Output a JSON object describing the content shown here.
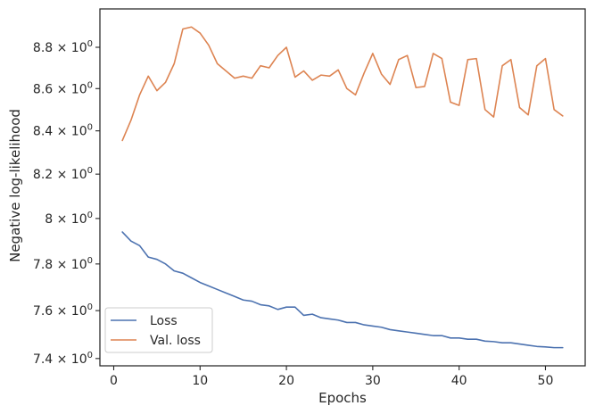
{
  "chart_data": {
    "type": "line",
    "xlabel": "Epochs",
    "ylabel": "Negative log-likelihood",
    "y_scale": "log",
    "xlim": [
      -1.6,
      54.6
    ],
    "ylim": [
      7.37,
      8.99
    ],
    "x_ticks": [
      0,
      10,
      20,
      30,
      40,
      50
    ],
    "y_ticks": [
      {
        "value": 7.4,
        "mantissa": "7.4"
      },
      {
        "value": 7.6,
        "mantissa": "7.6"
      },
      {
        "value": 7.8,
        "mantissa": "7.8"
      },
      {
        "value": 8.0,
        "mantissa": "8"
      },
      {
        "value": 8.2,
        "mantissa": "8.2"
      },
      {
        "value": 8.4,
        "mantissa": "8.4"
      },
      {
        "value": 8.6,
        "mantissa": "8.6"
      },
      {
        "value": 8.8,
        "mantissa": "8.8"
      }
    ],
    "tick_suffix_base": "× 10",
    "tick_suffix_exponent": "0",
    "grid": false,
    "legend_position": "lower-left",
    "x": [
      1,
      2,
      3,
      4,
      5,
      6,
      7,
      8,
      9,
      10,
      11,
      12,
      13,
      14,
      15,
      16,
      17,
      18,
      19,
      20,
      21,
      22,
      23,
      24,
      25,
      26,
      27,
      28,
      29,
      30,
      31,
      32,
      33,
      34,
      35,
      36,
      37,
      38,
      39,
      40,
      41,
      42,
      43,
      44,
      45,
      46,
      47,
      48,
      49,
      50,
      51,
      52
    ],
    "series": [
      {
        "name": "Loss",
        "color": "#4c72b0",
        "values": [
          7.94,
          7.9,
          7.88,
          7.83,
          7.82,
          7.8,
          7.77,
          7.76,
          7.74,
          7.72,
          7.705,
          7.69,
          7.675,
          7.66,
          7.645,
          7.64,
          7.625,
          7.62,
          7.605,
          7.615,
          7.615,
          7.58,
          7.585,
          7.57,
          7.565,
          7.56,
          7.55,
          7.55,
          7.54,
          7.535,
          7.53,
          7.52,
          7.515,
          7.51,
          7.505,
          7.5,
          7.495,
          7.495,
          7.485,
          7.485,
          7.48,
          7.48,
          7.472,
          7.47,
          7.465,
          7.465,
          7.46,
          7.455,
          7.45,
          7.448,
          7.445,
          7.445
        ]
      },
      {
        "name": "Val. loss",
        "color": "#dd8452",
        "values": [
          8.355,
          8.45,
          8.57,
          8.66,
          8.59,
          8.63,
          8.72,
          8.89,
          8.9,
          8.87,
          8.81,
          8.72,
          8.685,
          8.65,
          8.66,
          8.65,
          8.71,
          8.7,
          8.76,
          8.8,
          8.655,
          8.685,
          8.64,
          8.665,
          8.66,
          8.69,
          8.6,
          8.57,
          8.675,
          8.77,
          8.67,
          8.62,
          8.74,
          8.76,
          8.605,
          8.61,
          8.77,
          8.745,
          8.535,
          8.52,
          8.74,
          8.745,
          8.5,
          8.465,
          8.71,
          8.74,
          8.51,
          8.475,
          8.71,
          8.745,
          8.5,
          8.47
        ]
      }
    ]
  }
}
